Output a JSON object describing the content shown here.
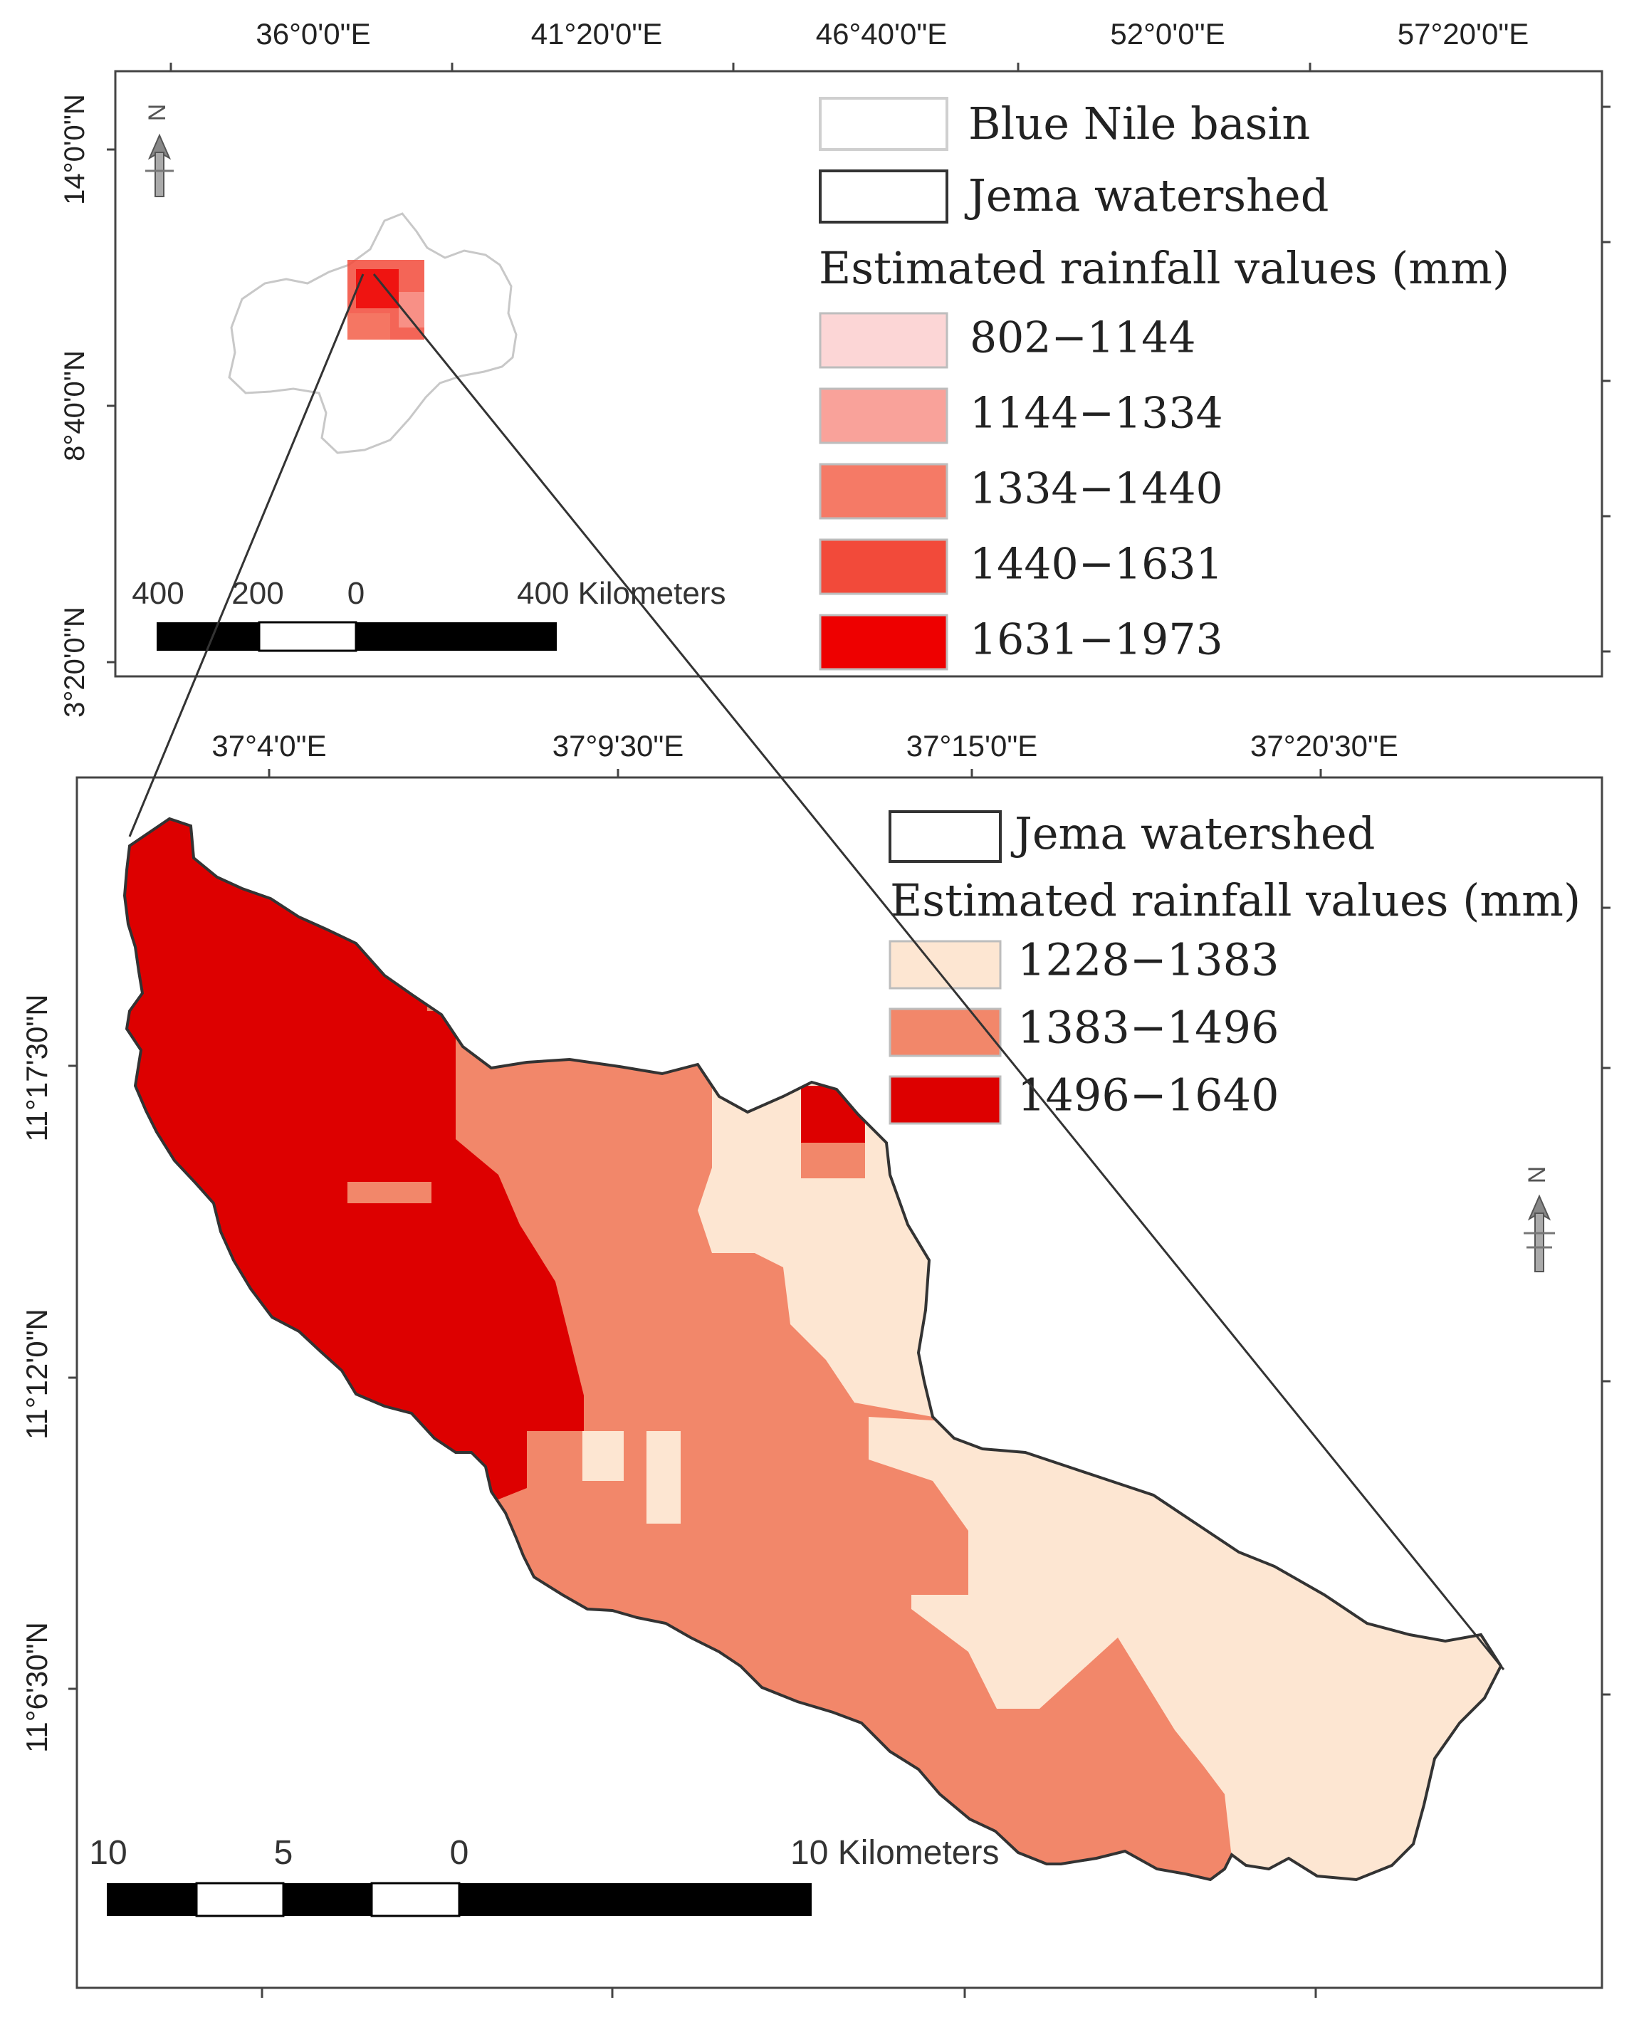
{
  "inset_map": {
    "top_axis_labels": [
      "36°0'0\"E",
      "41°20'0\"E",
      "46°40'0\"E",
      "52°0'0\"E",
      "57°20'0\"E"
    ],
    "left_axis_labels": [
      "14°0'0\"N",
      "8°40'0\"N",
      "3°20'0\"N"
    ],
    "legend": {
      "items": [
        {
          "label": "Blue Nile basin",
          "fill": "#ffffff",
          "stroke": "#cfcfcf"
        },
        {
          "label": "Jema watershed",
          "fill": "#ffffff",
          "stroke": "#333333"
        }
      ],
      "heading": "Estimated rainfall values (mm)",
      "classes": [
        {
          "label": "802−1144",
          "color": "#fcd6d6"
        },
        {
          "label": "1144−1334",
          "color": "#f9a29a"
        },
        {
          "label": "1334−1440",
          "color": "#f57a66"
        },
        {
          "label": "1440−1631",
          "color": "#f24a3a"
        },
        {
          "label": "1631−1973",
          "color": "#ee0000"
        }
      ]
    },
    "scalebar": {
      "labels": [
        "400",
        "200",
        "0",
        "400 Kilometers"
      ]
    },
    "north_arrow": {
      "letter": "N"
    }
  },
  "main_map": {
    "top_axis_labels": [
      "37°4'0\"E",
      "37°9'30\"E",
      "37°15'0\"E",
      "37°20'30\"E"
    ],
    "left_axis_labels": [
      "11°17'30\"N",
      "11°12'0\"N",
      "11°6'30\"N"
    ],
    "legend": {
      "items": [
        {
          "label": "Jema watershed",
          "fill": "#ffffff",
          "stroke": "#333333"
        }
      ],
      "heading": "Estimated rainfall values (mm)",
      "classes": [
        {
          "label": "1228−1383",
          "color": "#fde6d2"
        },
        {
          "label": "1383−1496",
          "color": "#f2876a"
        },
        {
          "label": "1496−1640",
          "color": "#dd0000"
        }
      ]
    },
    "scalebar": {
      "labels": [
        "10",
        "5",
        "0",
        "10 Kilometers"
      ]
    },
    "north_arrow": {
      "letter": "N"
    }
  }
}
